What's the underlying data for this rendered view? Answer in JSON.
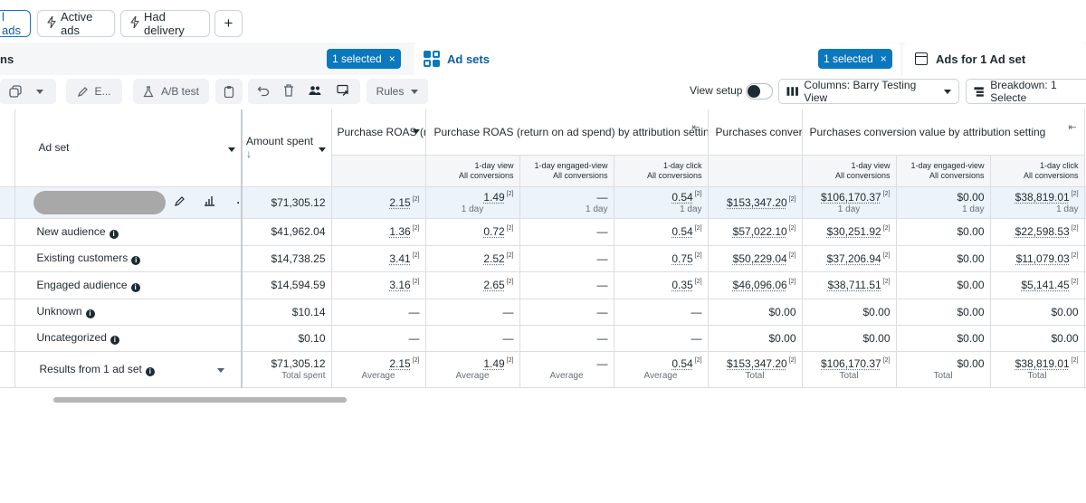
{
  "filters": {
    "all_ads": "l ads",
    "active_ads": "Active ads",
    "had_delivery": "Had delivery",
    "add": "+"
  },
  "tabs": {
    "campaigns_label": "ns",
    "campaigns_selected": "1 selected",
    "adsets_label": "Ad sets",
    "adsets_selected": "1 selected",
    "ads_label": "Ads for 1 Ad set",
    "close": "×"
  },
  "toolbar": {
    "edit": "E...",
    "ab_test": "A/B test",
    "rules": "Rules",
    "view_setup": "View setup",
    "columns": "Columns: Barry Testing View",
    "breakdown": "Breakdown: 1 Selecte"
  },
  "table": {
    "headers": {
      "ad_set": "Ad set",
      "amount_spent": "Amount spent",
      "roas": "Purchase ROAS (return on ad spend)",
      "roas_attr": "Purchase ROAS (return on ad spend) by attribution setting",
      "pcv": "Purchases conversion value",
      "pcv_attr": "Purchases conversion value by attribution setting"
    },
    "subheaders": [
      {
        "l1": "1-day view",
        "l2": "All conversions"
      },
      {
        "l1": "1-day engaged-view",
        "l2": "All conversions"
      },
      {
        "l1": "1-day click",
        "l2": "All conversions"
      },
      {
        "l1": "1-day view",
        "l2": "All conversions"
      },
      {
        "l1": "1-day engaged-view",
        "l2": "All conversions"
      },
      {
        "l1": "1-day click",
        "l2": "All conversions"
      }
    ],
    "adset_row": {
      "amount": "$71,305.12",
      "roas": "2.15",
      "r_view": "1.49",
      "r_view_sub": "1 day",
      "r_eng": "—",
      "r_eng_sub": "1 day",
      "r_click": "0.54",
      "r_click_sub": "1 day",
      "pcv": "$153,347.20",
      "p_view": "$106,170.37",
      "p_view_sub": "1 day",
      "p_eng": "$0.00",
      "p_eng_sub": "1 day",
      "p_click": "$38,819.01",
      "p_click_sub": "1 day"
    },
    "rows": [
      {
        "name": "New audience",
        "amount": "$41,962.04",
        "roas": "1.36",
        "r_view": "0.72",
        "r_eng": "—",
        "r_click": "0.54",
        "pcv": "$57,022.10",
        "p_view": "$30,251.92",
        "p_eng": "$0.00",
        "p_click": "$22,598.53"
      },
      {
        "name": "Existing customers",
        "amount": "$14,738.25",
        "roas": "3.41",
        "r_view": "2.52",
        "r_eng": "—",
        "r_click": "0.75",
        "pcv": "$50,229.04",
        "p_view": "$37,206.94",
        "p_eng": "$0.00",
        "p_click": "$11,079.03"
      },
      {
        "name": "Engaged audience",
        "amount": "$14,594.59",
        "roas": "3.16",
        "r_view": "2.65",
        "r_eng": "—",
        "r_click": "0.35",
        "pcv": "$46,096.06",
        "p_view": "$38,711.51",
        "p_eng": "$0.00",
        "p_click": "$5,141.45"
      },
      {
        "name": "Unknown",
        "amount": "$10.14",
        "roas": "—",
        "r_view": "—",
        "r_eng": "—",
        "r_click": "—",
        "pcv": "$0.00",
        "p_view": "$0.00",
        "p_eng": "$0.00",
        "p_click": "$0.00"
      },
      {
        "name": "Uncategorized",
        "amount": "$0.10",
        "roas": "—",
        "r_view": "—",
        "r_eng": "—",
        "r_click": "—",
        "pcv": "$0.00",
        "p_view": "$0.00",
        "p_eng": "$0.00",
        "p_click": "$0.00"
      }
    ],
    "footnote": "[2]",
    "totals": {
      "label": "Results from 1 ad set",
      "amount": "$71,305.12",
      "amount_sub": "Total spent",
      "roas": "2.15",
      "roas_sub": "Average",
      "r_view": "1.49",
      "r_view_sub": "Average",
      "r_eng": "—",
      "r_eng_sub": "Average",
      "r_click": "0.54",
      "r_click_sub": "Average",
      "pcv": "$153,347.20",
      "pcv_sub": "Total",
      "p_view": "$106,170.37",
      "p_view_sub": "Total",
      "p_eng": "$0.00",
      "p_eng_sub": "Total",
      "p_click": "$38,819.01",
      "p_click_sub": "Total"
    }
  }
}
